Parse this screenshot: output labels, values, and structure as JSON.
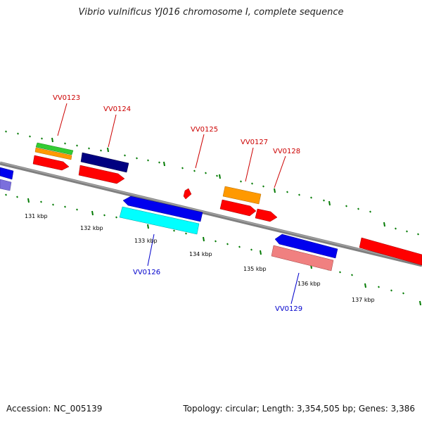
{
  "title": "Vibrio vulnificus YJ016 chromosome I, complete sequence",
  "footer": {
    "accession": "Accession: NC_005139",
    "summary": "Topology: circular; Length: 3,354,505 bp; Genes: 3,386"
  },
  "scale_labels": [
    "131 kbp",
    "132 kbp",
    "133 kbp",
    "134 kbp",
    "135 kbp",
    "136 kbp",
    "137 kbp"
  ],
  "gene_labels": {
    "forward": [
      "VV0123",
      "VV0124",
      "VV0125",
      "VV0127",
      "VV0128"
    ],
    "reverse": [
      "VV0126",
      "VV0129"
    ]
  },
  "colors": {
    "forward_label": "#cc0000",
    "reverse_label": "#0000cc",
    "backbone": "#808080",
    "tick": "#007a00"
  }
}
